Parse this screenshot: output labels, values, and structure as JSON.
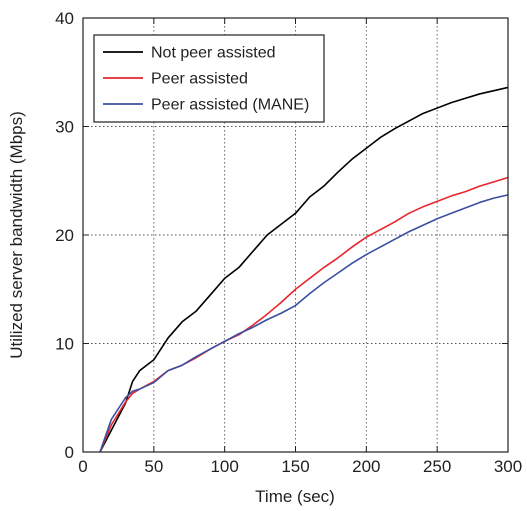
{
  "chart_data": {
    "type": "line",
    "xlabel": "Time (sec)",
    "ylabel": "Utilized server bandwidth (Mbps)",
    "xlim": [
      0,
      300
    ],
    "ylim": [
      0,
      40
    ],
    "x_ticks": [
      0,
      50,
      100,
      150,
      200,
      250,
      300
    ],
    "y_ticks": [
      0,
      10,
      20,
      30,
      40
    ],
    "grid": true,
    "legend_position": "top-left",
    "series": [
      {
        "name": "Not peer assisted",
        "color": "#000000",
        "x": [
          12,
          20,
          30,
          35,
          40,
          50,
          60,
          70,
          80,
          90,
          100,
          110,
          120,
          130,
          140,
          150,
          160,
          170,
          180,
          190,
          200,
          210,
          220,
          230,
          240,
          250,
          260,
          270,
          280,
          290,
          300
        ],
        "y": [
          0,
          2,
          4.5,
          6.5,
          7.5,
          8.5,
          10.5,
          12,
          13,
          14.5,
          16,
          17,
          18.5,
          20,
          21,
          22,
          23.5,
          24.5,
          25.8,
          27,
          28,
          29,
          29.8,
          30.5,
          31.2,
          31.7,
          32.2,
          32.6,
          33,
          33.3,
          33.6
        ]
      },
      {
        "name": "Peer assisted",
        "color": "#e8262d",
        "x": [
          12,
          20,
          30,
          35,
          40,
          50,
          60,
          70,
          80,
          90,
          100,
          110,
          120,
          130,
          140,
          150,
          160,
          170,
          180,
          190,
          200,
          210,
          220,
          230,
          240,
          250,
          260,
          270,
          280,
          290,
          300
        ],
        "y": [
          0,
          2.5,
          4.6,
          5.4,
          5.8,
          6.5,
          7.5,
          8,
          8.7,
          9.5,
          10.2,
          10.8,
          11.7,
          12.7,
          13.8,
          15,
          16,
          17,
          17.9,
          18.9,
          19.8,
          20.5,
          21.2,
          22,
          22.6,
          23.1,
          23.6,
          24,
          24.5,
          24.9,
          25.3
        ]
      },
      {
        "name": "Peer assisted (MANE)",
        "color": "#3b4fa3",
        "x": [
          12,
          20,
          30,
          35,
          40,
          50,
          60,
          70,
          80,
          90,
          100,
          110,
          120,
          130,
          140,
          150,
          160,
          170,
          180,
          190,
          200,
          210,
          220,
          230,
          240,
          250,
          260,
          270,
          280,
          290,
          300
        ],
        "y": [
          0,
          3,
          5,
          5.6,
          5.8,
          6.4,
          7.5,
          8,
          8.8,
          9.5,
          10.2,
          10.9,
          11.5,
          12.2,
          12.8,
          13.5,
          14.6,
          15.6,
          16.5,
          17.4,
          18.2,
          18.9,
          19.6,
          20.3,
          20.9,
          21.5,
          22,
          22.5,
          23,
          23.4,
          23.7
        ]
      }
    ]
  }
}
